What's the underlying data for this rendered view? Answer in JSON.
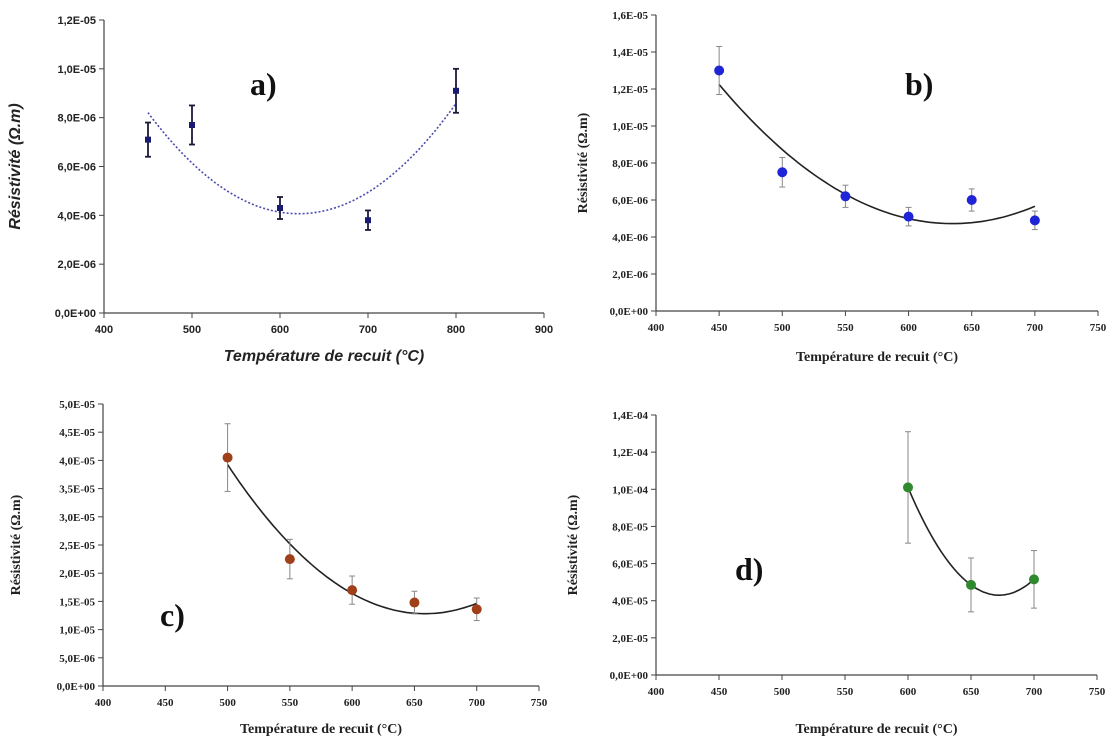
{
  "chart_data": [
    {
      "type": "scatter",
      "panel_label": "a)",
      "xlabel": "Température de recuit (°C)",
      "ylabel": "Résistivité (Ω.m)",
      "xlim": [
        400,
        900
      ],
      "xticks": [
        400,
        500,
        600,
        700,
        800,
        900
      ],
      "ylim": [
        0,
        1.2e-05
      ],
      "yticks": [
        "0,0E+00",
        "2,0E-06",
        "4,0E-06",
        "6,0E-06",
        "8,0E-06",
        "1,0E-05",
        "1,2E-05"
      ],
      "trendline": "polynomial (dotted)",
      "marker_color": "#1a1a6e",
      "line_color": "#4b4bb0",
      "series": [
        {
          "x": [
            450,
            500,
            600,
            700,
            800
          ],
          "y": [
            7.1e-06,
            7.7e-06,
            4.3e-06,
            3.8e-06,
            9.1e-06
          ],
          "error": [
            7e-07,
            8e-07,
            4.5e-07,
            4e-07,
            9e-07
          ]
        }
      ]
    },
    {
      "type": "scatter",
      "panel_label": "b)",
      "xlabel": "Température de recuit (°C)",
      "ylabel": "Résistivité (Ω.m)",
      "xlim": [
        400,
        750
      ],
      "xticks": [
        400,
        450,
        500,
        550,
        600,
        650,
        700,
        750
      ],
      "ylim": [
        0,
        1.6e-05
      ],
      "yticks": [
        "0,0E+00",
        "2,0E-06",
        "4,0E-06",
        "6,0E-06",
        "8,0E-06",
        "1,0E-05",
        "1,2E-05",
        "1,4E-05",
        "1,6E-05"
      ],
      "trendline": "polynomial",
      "marker_color": "#1f24d6",
      "line_color": "#222222",
      "series": [
        {
          "x": [
            450,
            500,
            550,
            600,
            650,
            700
          ],
          "y": [
            1.3e-05,
            7.5e-06,
            6.2e-06,
            5.1e-06,
            6e-06,
            4.9e-06
          ],
          "error": [
            1.3e-06,
            8e-07,
            6e-07,
            5e-07,
            6e-07,
            5e-07
          ]
        }
      ]
    },
    {
      "type": "scatter",
      "panel_label": "c)",
      "xlabel": "Température de recuit (°C)",
      "ylabel": "Résistivité (Ω.m)",
      "xlim": [
        400,
        750
      ],
      "xticks": [
        400,
        450,
        500,
        550,
        600,
        650,
        700,
        750
      ],
      "ylim": [
        0,
        5e-05
      ],
      "yticks": [
        "0,0E+00",
        "5,0E-06",
        "1,0E-05",
        "1,5E-05",
        "2,0E-05",
        "2,5E-05",
        "3,0E-05",
        "3,5E-05",
        "4,0E-05",
        "4,5E-05",
        "5,0E-05"
      ],
      "trendline": "polynomial",
      "marker_color": "#a0401a",
      "line_color": "#222222",
      "series": [
        {
          "x": [
            500,
            550,
            600,
            650,
            700
          ],
          "y": [
            4.05e-05,
            2.25e-05,
            1.7e-05,
            1.48e-05,
            1.36e-05
          ],
          "error": [
            6e-06,
            3.5e-06,
            2.5e-06,
            2e-06,
            2e-06
          ]
        }
      ]
    },
    {
      "type": "scatter",
      "panel_label": "d)",
      "xlabel": "Température de recuit (°C)",
      "ylabel": "Résistivité (Ω.m)",
      "xlim": [
        400,
        750
      ],
      "xticks": [
        400,
        450,
        500,
        550,
        600,
        650,
        700,
        750
      ],
      "ylim": [
        0,
        0.00014
      ],
      "yticks": [
        "0,0E+00",
        "2,0E-05",
        "4,0E-05",
        "6,0E-05",
        "8,0E-05",
        "1,0E-04",
        "1,2E-04",
        "1,4E-04"
      ],
      "trendline": "polynomial",
      "marker_color": "#2f8a2f",
      "line_color": "#222222",
      "series": [
        {
          "x": [
            600,
            650,
            700
          ],
          "y": [
            0.000101,
            4.85e-05,
            5.15e-05
          ],
          "error": [
            3e-05,
            1.45e-05,
            1.55e-05
          ]
        }
      ]
    }
  ]
}
